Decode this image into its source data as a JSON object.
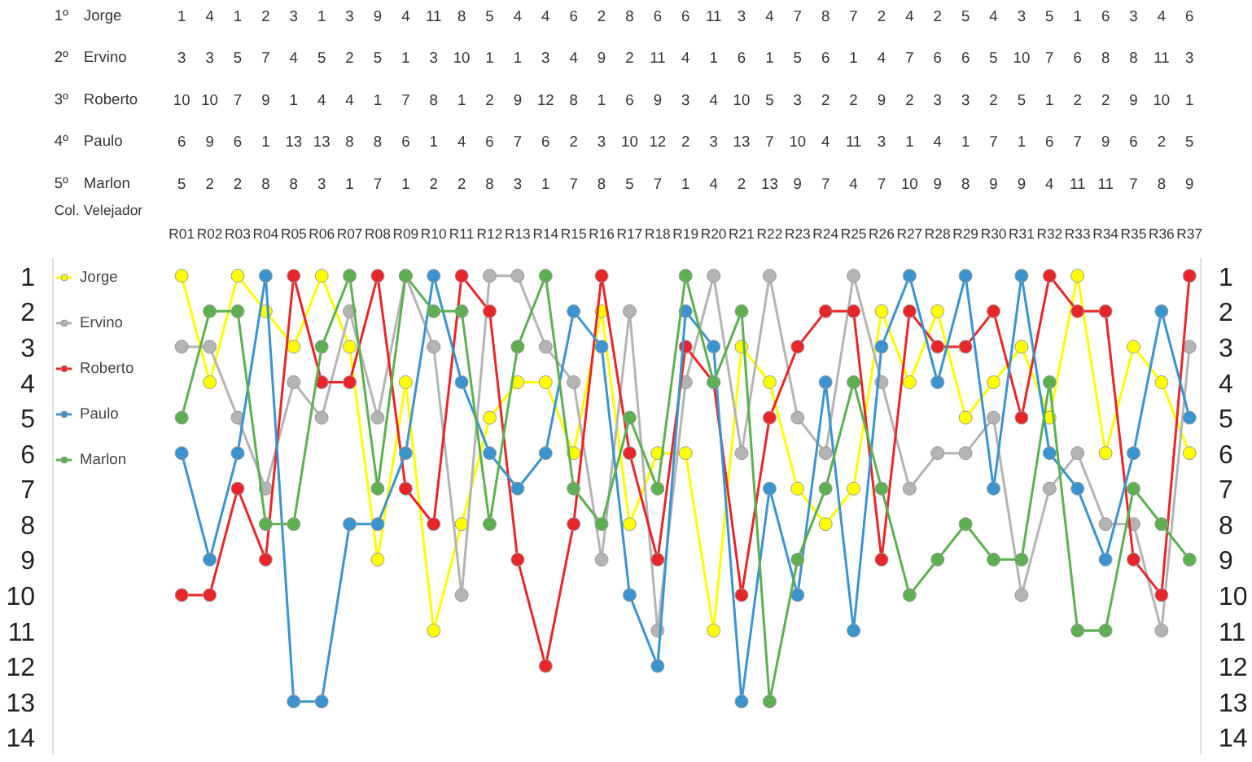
{
  "chart_data": {
    "type": "line",
    "categories": [
      "R01",
      "R02",
      "R03",
      "R04",
      "R05",
      "R06",
      "R07",
      "R08",
      "R09",
      "R10",
      "R11",
      "R12",
      "R13",
      "R14",
      "R15",
      "R16",
      "R17",
      "R18",
      "R19",
      "R20",
      "R21",
      "R22",
      "R23",
      "R24",
      "R25",
      "R26",
      "R27",
      "R28",
      "R29",
      "R30",
      "R31",
      "R32",
      "R33",
      "R34",
      "R35",
      "R36",
      "R37"
    ],
    "series": [
      {
        "name": "Jorge",
        "color": "#ffff00",
        "values": [
          1,
          4,
          1,
          2,
          3,
          1,
          3,
          9,
          4,
          11,
          8,
          5,
          4,
          4,
          6,
          2,
          8,
          6,
          6,
          11,
          3,
          4,
          7,
          8,
          7,
          2,
          4,
          2,
          5,
          4,
          3,
          5,
          1,
          6,
          3,
          4,
          6
        ]
      },
      {
        "name": "Ervino",
        "color": "#b4b4b4",
        "values": [
          3,
          3,
          5,
          7,
          4,
          5,
          2,
          5,
          1,
          3,
          10,
          1,
          1,
          3,
          4,
          9,
          2,
          11,
          4,
          1,
          6,
          1,
          5,
          6,
          1,
          4,
          7,
          6,
          6,
          5,
          10,
          7,
          6,
          8,
          8,
          11,
          3
        ]
      },
      {
        "name": "Roberto",
        "color": "#e8262a",
        "values": [
          10,
          10,
          7,
          9,
          1,
          4,
          4,
          1,
          7,
          8,
          1,
          2,
          9,
          12,
          8,
          1,
          6,
          9,
          3,
          4,
          10,
          5,
          3,
          2,
          2,
          9,
          2,
          3,
          3,
          2,
          5,
          1,
          2,
          2,
          9,
          10,
          1
        ]
      },
      {
        "name": "Paulo",
        "color": "#3a94d0",
        "values": [
          6,
          9,
          6,
          1,
          13,
          13,
          8,
          8,
          6,
          1,
          4,
          6,
          7,
          6,
          2,
          3,
          10,
          12,
          2,
          3,
          13,
          7,
          10,
          4,
          11,
          3,
          1,
          4,
          1,
          7,
          1,
          6,
          7,
          9,
          6,
          2,
          5
        ]
      },
      {
        "name": "Marlon",
        "color": "#5cb050",
        "values": [
          5,
          2,
          2,
          8,
          8,
          3,
          1,
          7,
          1,
          2,
          2,
          8,
          3,
          1,
          7,
          8,
          5,
          7,
          1,
          4,
          2,
          13,
          9,
          7,
          4,
          7,
          10,
          9,
          8,
          9,
          9,
          4,
          11,
          11,
          7,
          8,
          9
        ]
      }
    ],
    "ylim": [
      14.5,
      0.5
    ],
    "yticks": [
      1,
      2,
      3,
      4,
      5,
      6,
      7,
      8,
      9,
      10,
      11,
      12,
      13,
      14
    ],
    "y2lim": [
      14.5,
      0.5
    ],
    "y2ticks": [
      1,
      2,
      3,
      4,
      5,
      6,
      7,
      8,
      9,
      10,
      11,
      12,
      13,
      14
    ],
    "data_labels": true,
    "legend": "top left",
    "marker": "circle",
    "line_style": "solid",
    "grid": false,
    "annotations": [
      "Col.",
      "Velejador",
      "1º",
      "2º",
      "3º",
      "4º",
      "5º"
    ]
  }
}
